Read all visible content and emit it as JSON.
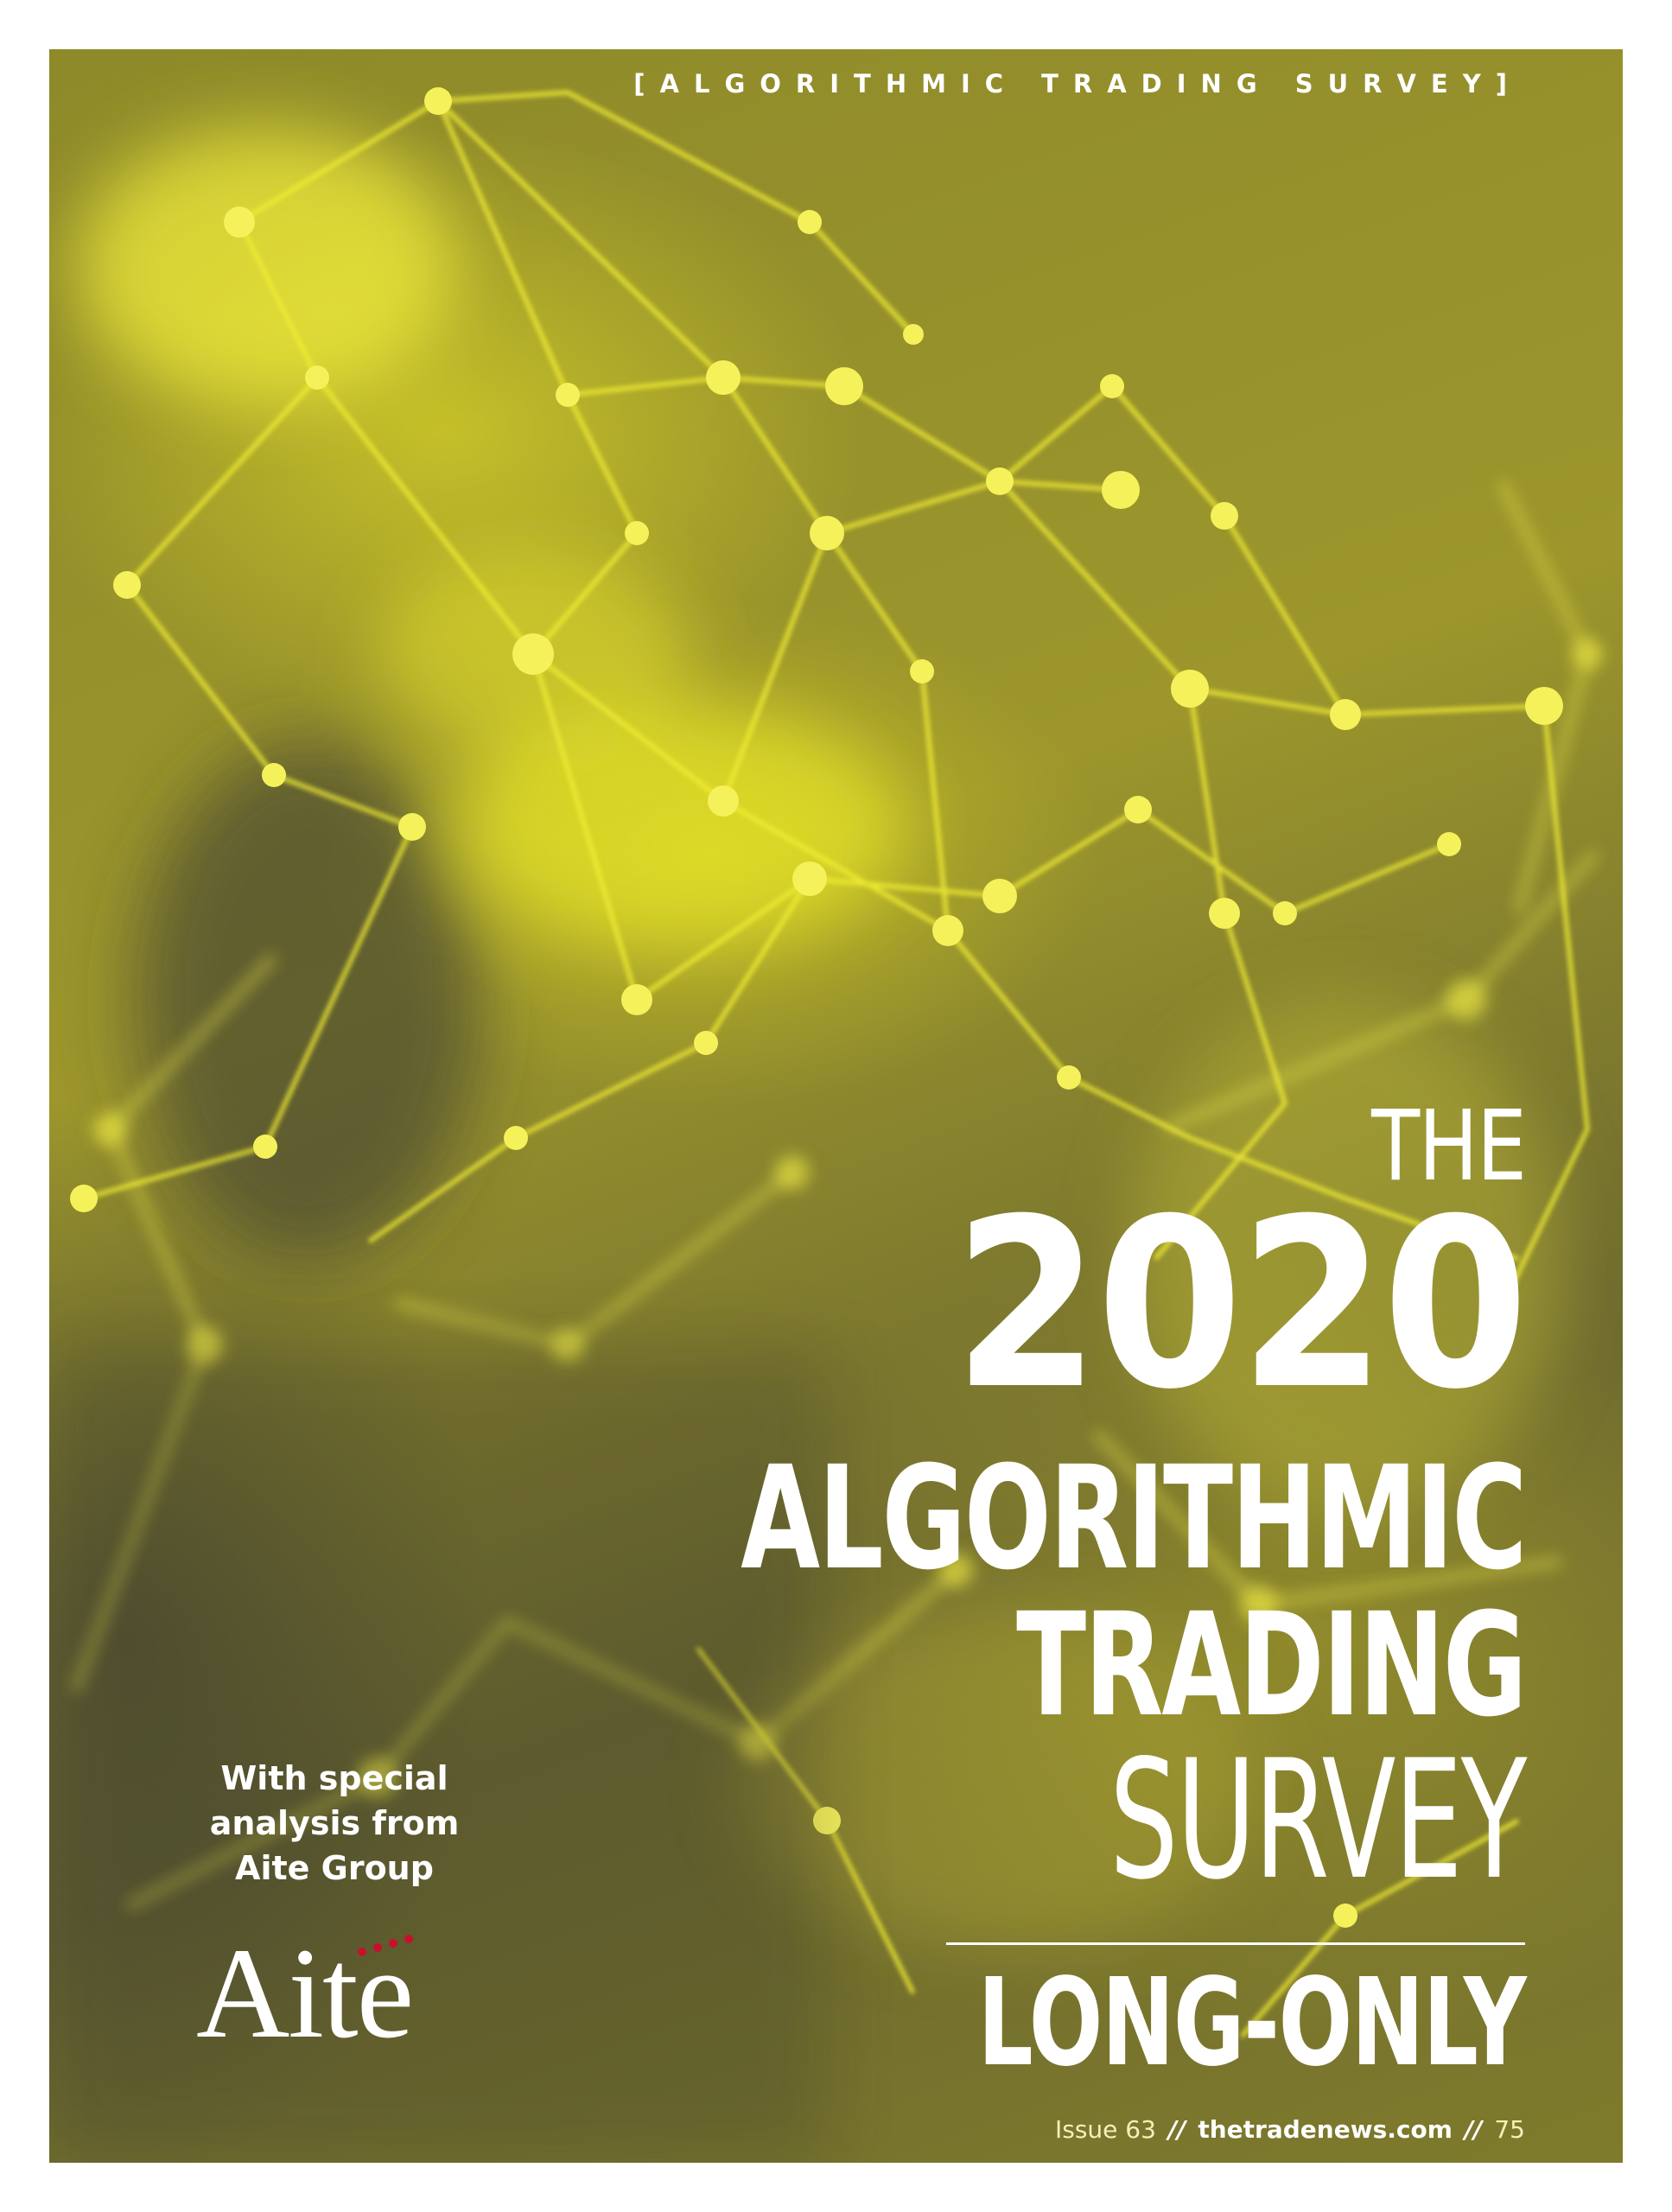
{
  "header": {
    "section_tag": "[ALGORITHMIC TRADING SURVEY]"
  },
  "title": {
    "line1": "THE",
    "year": "2020",
    "line3": "ALGORITHMIC",
    "line4": "TRADING",
    "line5": "SURVEY",
    "subtitle": "LONG-ONLY"
  },
  "sponsor": {
    "lines": [
      "With special",
      "analysis from",
      "Aite Group"
    ],
    "logo_text": "Aite",
    "logo_dot_color": "#c8102e"
  },
  "footer": {
    "issue": "Issue 63",
    "separator": "//",
    "site": "thetradenews.com",
    "page_number": "75"
  },
  "colors": {
    "background_dark": "#6b6830",
    "network_yellow": "#f2ee2a",
    "text": "#ffffff"
  }
}
